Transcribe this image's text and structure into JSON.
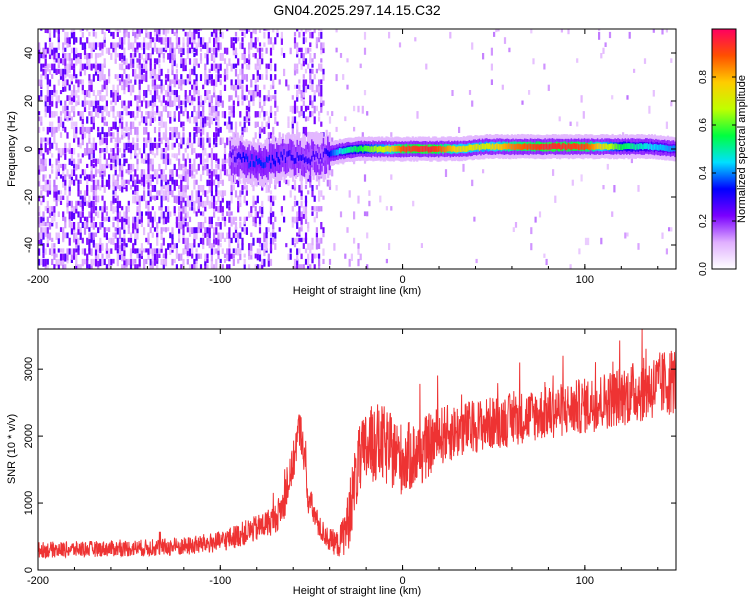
{
  "chart_data": [
    {
      "type": "heatmap",
      "title": "GN04.2025.297.14.15.C32",
      "xlabel": "Height of straight line (km)",
      "ylabel": "Frequency (Hz)",
      "xlim": [
        -200,
        150
      ],
      "ylim": [
        -50,
        50
      ],
      "x_ticks": [
        -200,
        -100,
        0,
        100
      ],
      "x_tick_labels": [
        "-200",
        "-100",
        "0",
        "100"
      ],
      "y_ticks": [
        -40,
        -20,
        0,
        20,
        40
      ],
      "y_tick_labels": [
        "-40",
        "-20",
        "0",
        "20",
        "40"
      ],
      "colorbar": {
        "label": "Normalized spectral amplitude",
        "range": [
          0,
          1
        ],
        "ticks": [
          0.0,
          0.2,
          0.4,
          0.6,
          0.8
        ],
        "tick_labels": [
          "0.0",
          "0.2",
          "0.4",
          "0.6",
          "0.8"
        ],
        "colormap": [
          "#ffffff",
          "#e0b0ff",
          "#7a00ff",
          "#0000ff",
          "#00e0ff",
          "#00ff40",
          "#c0ff00",
          "#ffcc00",
          "#ff5000",
          "#ff0060"
        ]
      },
      "noise_region_x": [
        -200,
        -43
      ],
      "signal_ridge": [
        {
          "x": -95,
          "freq": -3,
          "amp": 0.25
        },
        {
          "x": -85,
          "freq": -5,
          "amp": 0.35
        },
        {
          "x": -75,
          "freq": -6,
          "amp": 0.35
        },
        {
          "x": -65,
          "freq": -3,
          "amp": 0.3
        },
        {
          "x": -55,
          "freq": -4,
          "amp": 0.3
        },
        {
          "x": -45,
          "freq": -3,
          "amp": 0.25
        },
        {
          "x": -35,
          "freq": -1,
          "amp": 0.45
        },
        {
          "x": -25,
          "freq": 0,
          "amp": 0.55
        },
        {
          "x": -10,
          "freq": 0,
          "amp": 0.7
        },
        {
          "x": 0,
          "freq": 0,
          "amp": 0.9
        },
        {
          "x": 15,
          "freq": 0,
          "amp": 0.95
        },
        {
          "x": 30,
          "freq": 0,
          "amp": 0.75
        },
        {
          "x": 45,
          "freq": 1,
          "amp": 0.7
        },
        {
          "x": 60,
          "freq": 1,
          "amp": 0.85
        },
        {
          "x": 80,
          "freq": 1,
          "amp": 0.95
        },
        {
          "x": 100,
          "freq": 1,
          "amp": 0.9
        },
        {
          "x": 120,
          "freq": 1,
          "amp": 0.55
        },
        {
          "x": 135,
          "freq": 1,
          "amp": 0.45
        },
        {
          "x": 150,
          "freq": 0,
          "amp": 0.4
        }
      ]
    },
    {
      "type": "line",
      "title": "",
      "xlabel": "Height of straight line (km)",
      "ylabel": "SNR (10 * v/v)",
      "xlim": [
        -200,
        150
      ],
      "ylim": [
        0,
        3600
      ],
      "x_ticks": [
        -200,
        -100,
        0,
        100
      ],
      "x_tick_labels": [
        "-200",
        "-100",
        "0",
        "100"
      ],
      "y_ticks": [
        0,
        1000,
        2000,
        3000
      ],
      "y_tick_labels": [
        "0",
        "1000",
        "2000",
        "3000"
      ],
      "series": [
        {
          "name": "SNR",
          "color": "#ee3333",
          "x": [
            -200,
            -180,
            -160,
            -140,
            -120,
            -100,
            -90,
            -80,
            -70,
            -65,
            -60,
            -57,
            -55,
            -52,
            -48,
            -45,
            -40,
            -35,
            -30,
            -25,
            -20,
            -15,
            -10,
            -5,
            0,
            10,
            20,
            40,
            60,
            80,
            100,
            120,
            140,
            150
          ],
          "values": [
            300,
            310,
            320,
            330,
            350,
            420,
            520,
            620,
            760,
            1000,
            1600,
            2100,
            2000,
            1100,
            800,
            600,
            450,
            380,
            700,
            1500,
            1800,
            1900,
            1850,
            1750,
            1650,
            1750,
            2000,
            2150,
            2250,
            2350,
            2450,
            2600,
            2750,
            2850
          ],
          "spread": [
            120,
            120,
            120,
            130,
            140,
            160,
            180,
            200,
            220,
            260,
            300,
            300,
            300,
            260,
            200,
            180,
            180,
            200,
            450,
            550,
            600,
            600,
            600,
            550,
            550,
            500,
            450,
            400,
            400,
            400,
            420,
            450,
            500,
            520
          ]
        }
      ]
    }
  ]
}
